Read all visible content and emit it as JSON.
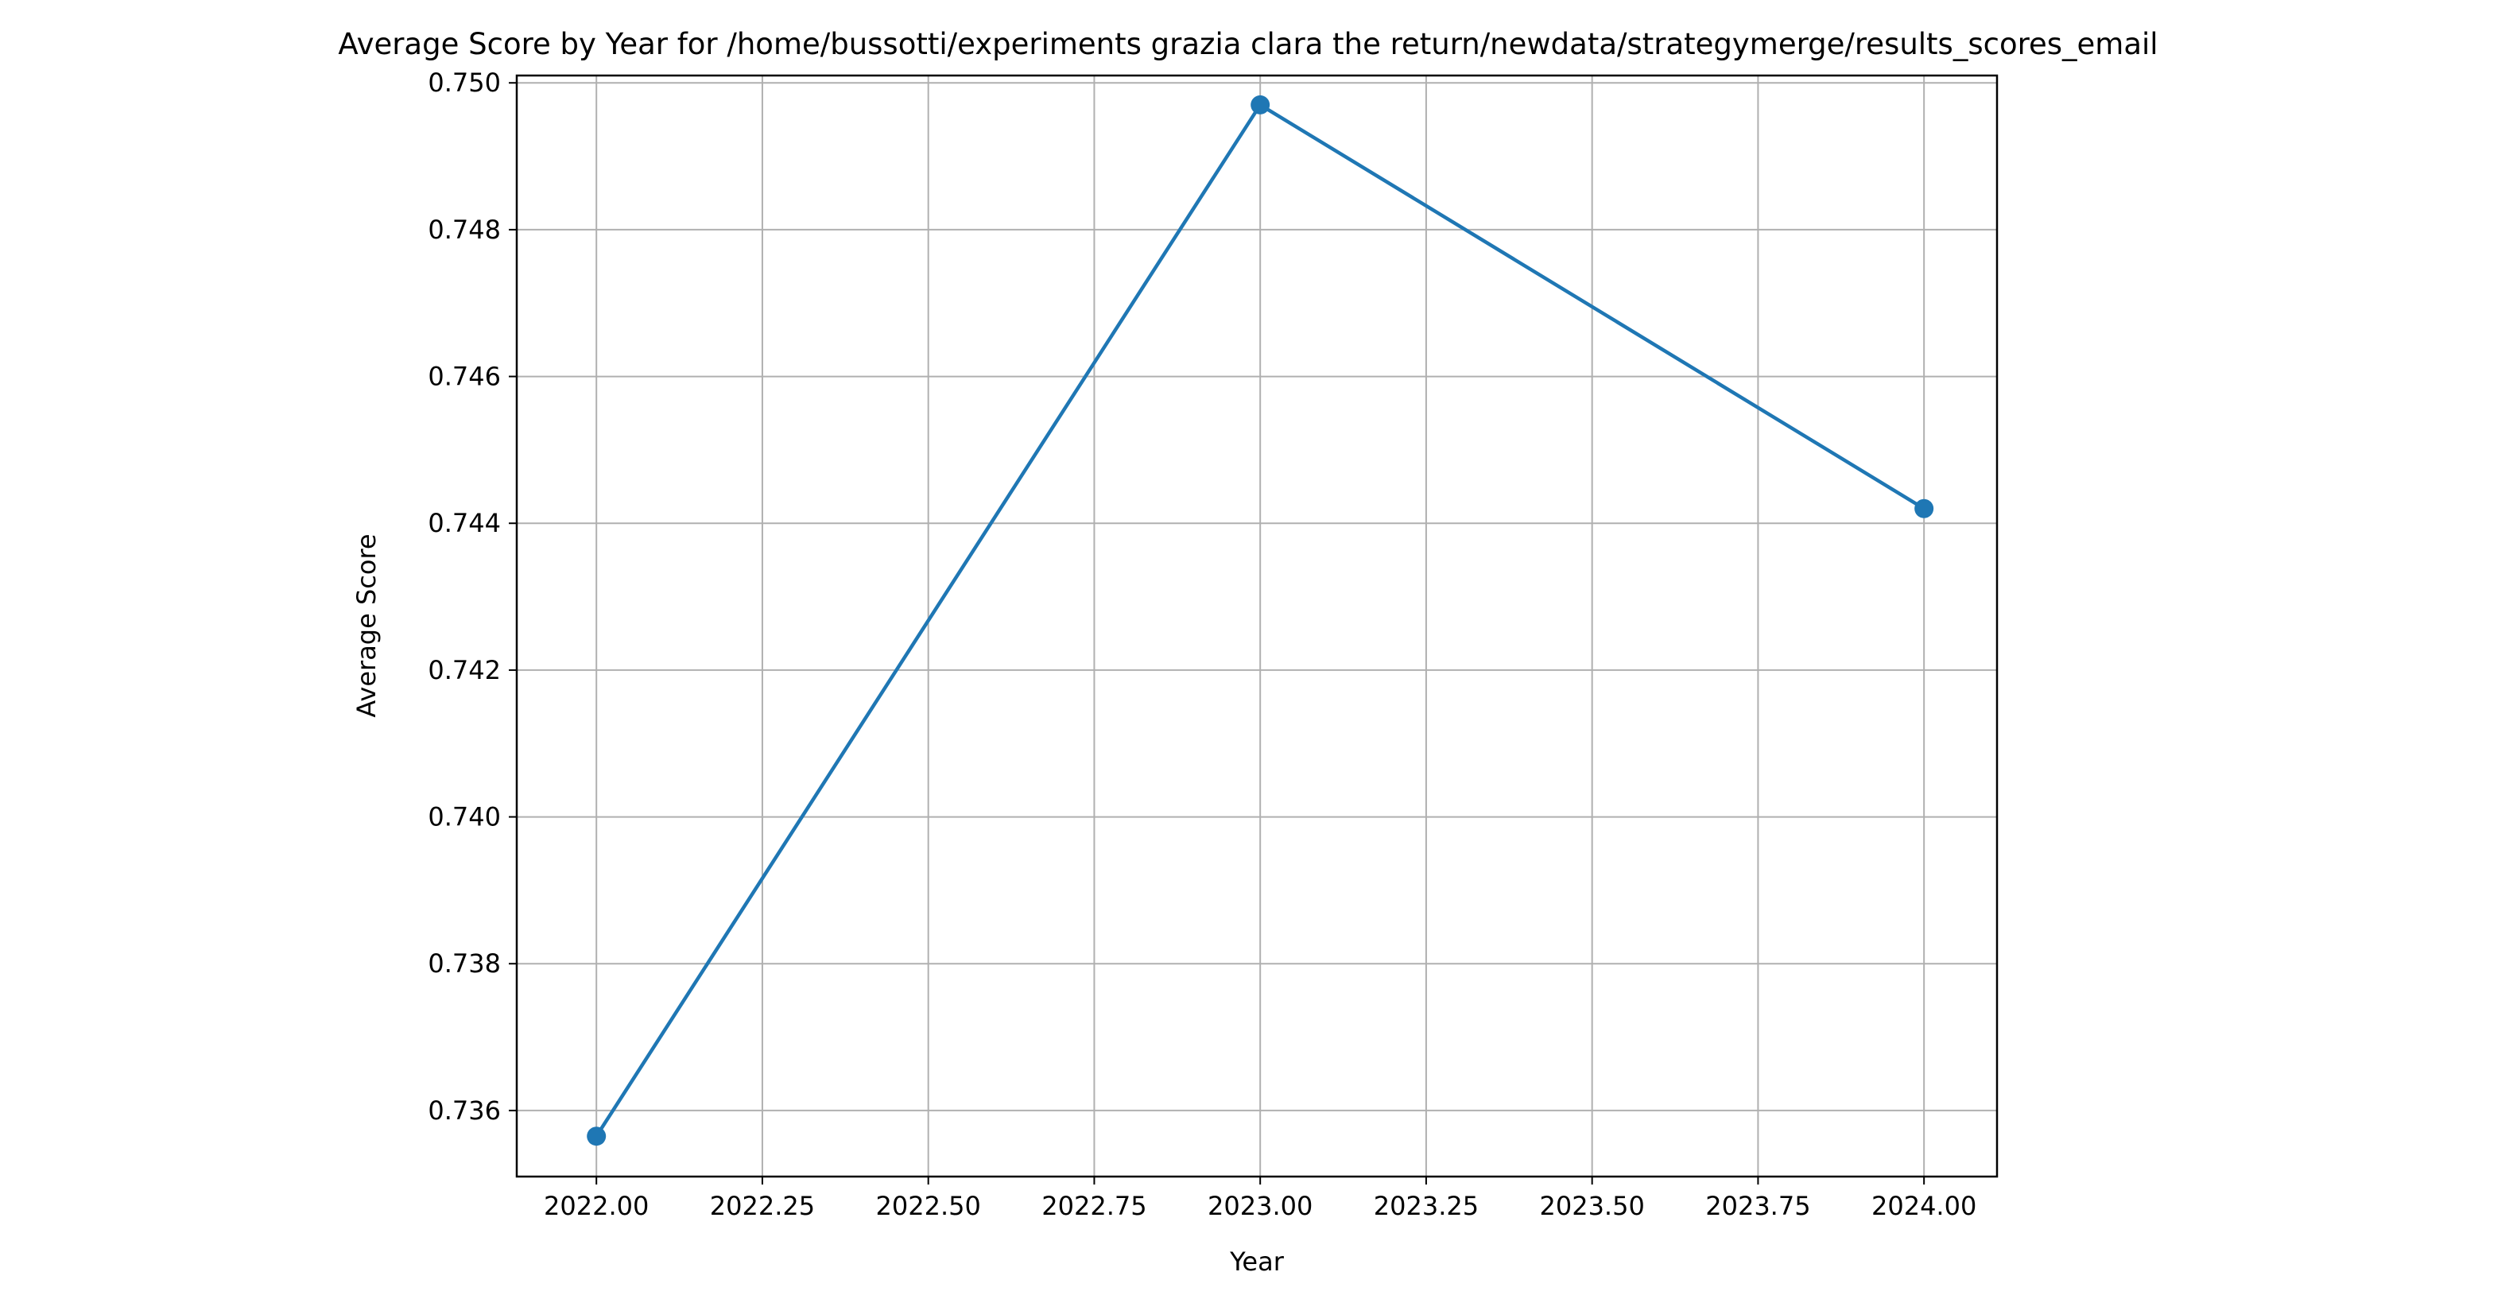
{
  "chart_data": {
    "type": "line",
    "title": "Average Score by Year for /home/bussotti/experiments grazia clara the return/newdata/strategymerge/results_scores_email",
    "xlabel": "Year",
    "ylabel": "Average Score",
    "x": [
      2022,
      2023,
      2024
    ],
    "series": [
      {
        "values": [
          0.73565,
          0.7497,
          0.7442
        ],
        "color": "#1f77b4",
        "marker": "circle"
      }
    ],
    "xlim": [
      2021.88,
      2024.11
    ],
    "ylim": [
      0.7351,
      0.7501
    ],
    "xticks": [
      2022.0,
      2022.25,
      2022.5,
      2022.75,
      2023.0,
      2023.25,
      2023.5,
      2023.75,
      2024.0
    ],
    "xtick_labels": [
      "2022.00",
      "2022.25",
      "2022.50",
      "2022.75",
      "2023.00",
      "2023.25",
      "2023.50",
      "2023.75",
      "2024.00"
    ],
    "yticks": [
      0.736,
      0.738,
      0.74,
      0.742,
      0.744,
      0.746,
      0.748,
      0.75
    ],
    "ytick_labels": [
      "0.736",
      "0.738",
      "0.740",
      "0.742",
      "0.744",
      "0.746",
      "0.748",
      "0.750"
    ],
    "grid": true,
    "grid_color": "#b0b0b0",
    "legend": false
  }
}
